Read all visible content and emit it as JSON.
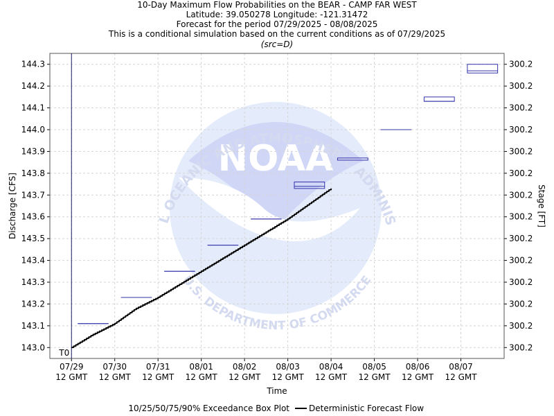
{
  "header": {
    "title": "10-Day Maximum Flow Probabilities on the BEAR - CAMP FAR WEST",
    "location": "Latitude: 39.050278 Longitude: -121.31472",
    "period": "Forecast for the period 07/29/2025 - 08/08/2025",
    "note": "This is a conditional simulation based on the current conditions as of 07/29/2025",
    "source": "(src=D)"
  },
  "legend": {
    "boxplot_label": "10/25/50/75/90% Exceedance Box Plot",
    "deterministic_label": "Deterministic Forecast Flow"
  },
  "watermark": {
    "logo_text": "NOAA",
    "ring_top": "NATIONAL OCEANIC AND ATMOSPHERIC ADMINISTRATION",
    "ring_bottom": "U.S. DEPARTMENT OF COMMERCE"
  },
  "colors": {
    "box": "#3333aa",
    "line": "#000000",
    "t0_line": "#1a1a66",
    "grid": "#d4d4d4",
    "watermark_light": "#e4ecfb",
    "watermark_mid": "#d0d6f6"
  },
  "chart_data": {
    "type": "boxplot_line",
    "xlabel": "Time",
    "ylabel": "Discharge [CFS]",
    "y2label": "Stage [FT]",
    "ylim": [
      142.95,
      144.35
    ],
    "yticks": [
      143.0,
      143.1,
      143.2,
      143.3,
      143.4,
      143.5,
      143.6,
      143.7,
      143.8,
      143.9,
      144.0,
      144.1,
      144.2,
      144.3
    ],
    "ytick_labels": [
      "143.0",
      "143.1",
      "143.2",
      "143.3",
      "143.4",
      "143.5",
      "143.6",
      "143.7",
      "143.8",
      "143.9",
      "144.0",
      "144.1",
      "144.2",
      "144.3"
    ],
    "y2tick_labels": [
      "300.2",
      "300.2",
      "300.2",
      "300.2",
      "300.2",
      "300.2",
      "300.2",
      "300.2",
      "300.2",
      "300.2",
      "300.2",
      "300.2",
      "300.2",
      "300.2"
    ],
    "xlim_days": [
      -0.5,
      10.0
    ],
    "xticks": [
      {
        "day": 0,
        "label1": "07/29",
        "label2": "12 GMT"
      },
      {
        "day": 1,
        "label1": "07/30",
        "label2": "12 GMT"
      },
      {
        "day": 2,
        "label1": "07/31",
        "label2": "12 GMT"
      },
      {
        "day": 3,
        "label1": "08/01",
        "label2": "12 GMT"
      },
      {
        "day": 4,
        "label1": "08/02",
        "label2": "12 GMT"
      },
      {
        "day": 5,
        "label1": "08/03",
        "label2": "12 GMT"
      },
      {
        "day": 6,
        "label1": "08/04",
        "label2": "12 GMT"
      },
      {
        "day": 7,
        "label1": "08/05",
        "label2": "12 GMT"
      },
      {
        "day": 8,
        "label1": "08/06",
        "label2": "12 GMT"
      },
      {
        "day": 9,
        "label1": "08/07",
        "label2": "12 GMT"
      }
    ],
    "t0_label": "T0",
    "boxes": [
      {
        "start": 0.15,
        "end": 0.85,
        "p10": 143.11,
        "p25": 143.11,
        "p50": 143.11,
        "p75": 143.11,
        "p90": 143.11
      },
      {
        "start": 1.15,
        "end": 1.85,
        "p10": 143.23,
        "p25": 143.23,
        "p50": 143.23,
        "p75": 143.23,
        "p90": 143.23
      },
      {
        "start": 2.15,
        "end": 2.85,
        "p10": 143.35,
        "p25": 143.35,
        "p50": 143.35,
        "p75": 143.35,
        "p90": 143.35
      },
      {
        "start": 3.15,
        "end": 3.85,
        "p10": 143.47,
        "p25": 143.47,
        "p50": 143.47,
        "p75": 143.47,
        "p90": 143.47
      },
      {
        "start": 4.15,
        "end": 4.85,
        "p10": 143.59,
        "p25": 143.59,
        "p50": 143.59,
        "p75": 143.59,
        "p90": 143.59
      },
      {
        "start": 5.15,
        "end": 5.85,
        "p10": 143.73,
        "p25": 143.73,
        "p50": 143.74,
        "p75": 143.76,
        "p90": 143.76
      },
      {
        "start": 6.15,
        "end": 6.85,
        "p10": 143.86,
        "p25": 143.86,
        "p50": 143.86,
        "p75": 143.87,
        "p90": 143.87
      },
      {
        "start": 7.15,
        "end": 7.85,
        "p10": 144.0,
        "p25": 144.0,
        "p50": 144.0,
        "p75": 144.0,
        "p90": 144.0
      },
      {
        "start": 8.15,
        "end": 8.85,
        "p10": 144.13,
        "p25": 144.13,
        "p50": 144.13,
        "p75": 144.15,
        "p90": 144.15
      },
      {
        "start": 9.15,
        "end": 9.85,
        "p10": 144.26,
        "p25": 144.26,
        "p50": 144.27,
        "p75": 144.3,
        "p90": 144.3
      }
    ],
    "deterministic": {
      "x_days": [
        0.0,
        0.5,
        1.0,
        1.5,
        2.0,
        2.5,
        3.0,
        3.5,
        4.0,
        4.5,
        5.0,
        5.5,
        6.0
      ],
      "values": [
        143.0,
        143.06,
        143.11,
        143.18,
        143.23,
        143.29,
        143.35,
        143.41,
        143.47,
        143.53,
        143.59,
        143.66,
        143.73
      ]
    }
  }
}
